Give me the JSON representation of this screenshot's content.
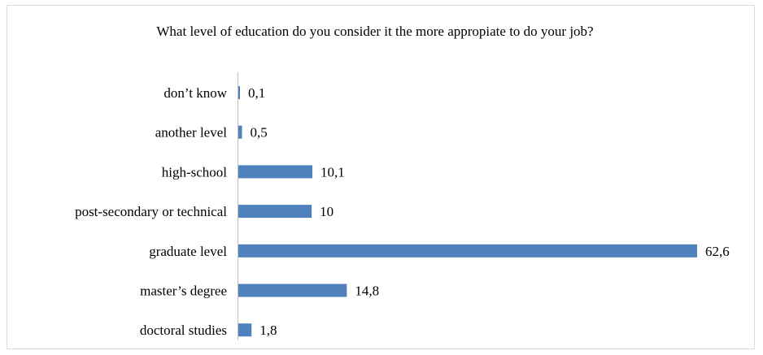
{
  "chart_data": {
    "type": "bar",
    "orientation": "horizontal",
    "title": "What level of education do you consider it the more appropiate to do your job?",
    "categories": [
      "don’t know",
      "another level",
      "high-school",
      "post-secondary or technical",
      "graduate level",
      "master’s degree",
      "doctoral studies"
    ],
    "values": [
      0.1,
      0.5,
      10.1,
      10,
      62.6,
      14.8,
      1.8
    ],
    "data_labels": [
      "0,1",
      "0,5",
      "10,1",
      "10",
      "62,6",
      "14,8",
      "1,8"
    ],
    "xlim": [
      0,
      62.6
    ],
    "bar_color": "#4f81bd",
    "grid": false,
    "legend": "none"
  }
}
